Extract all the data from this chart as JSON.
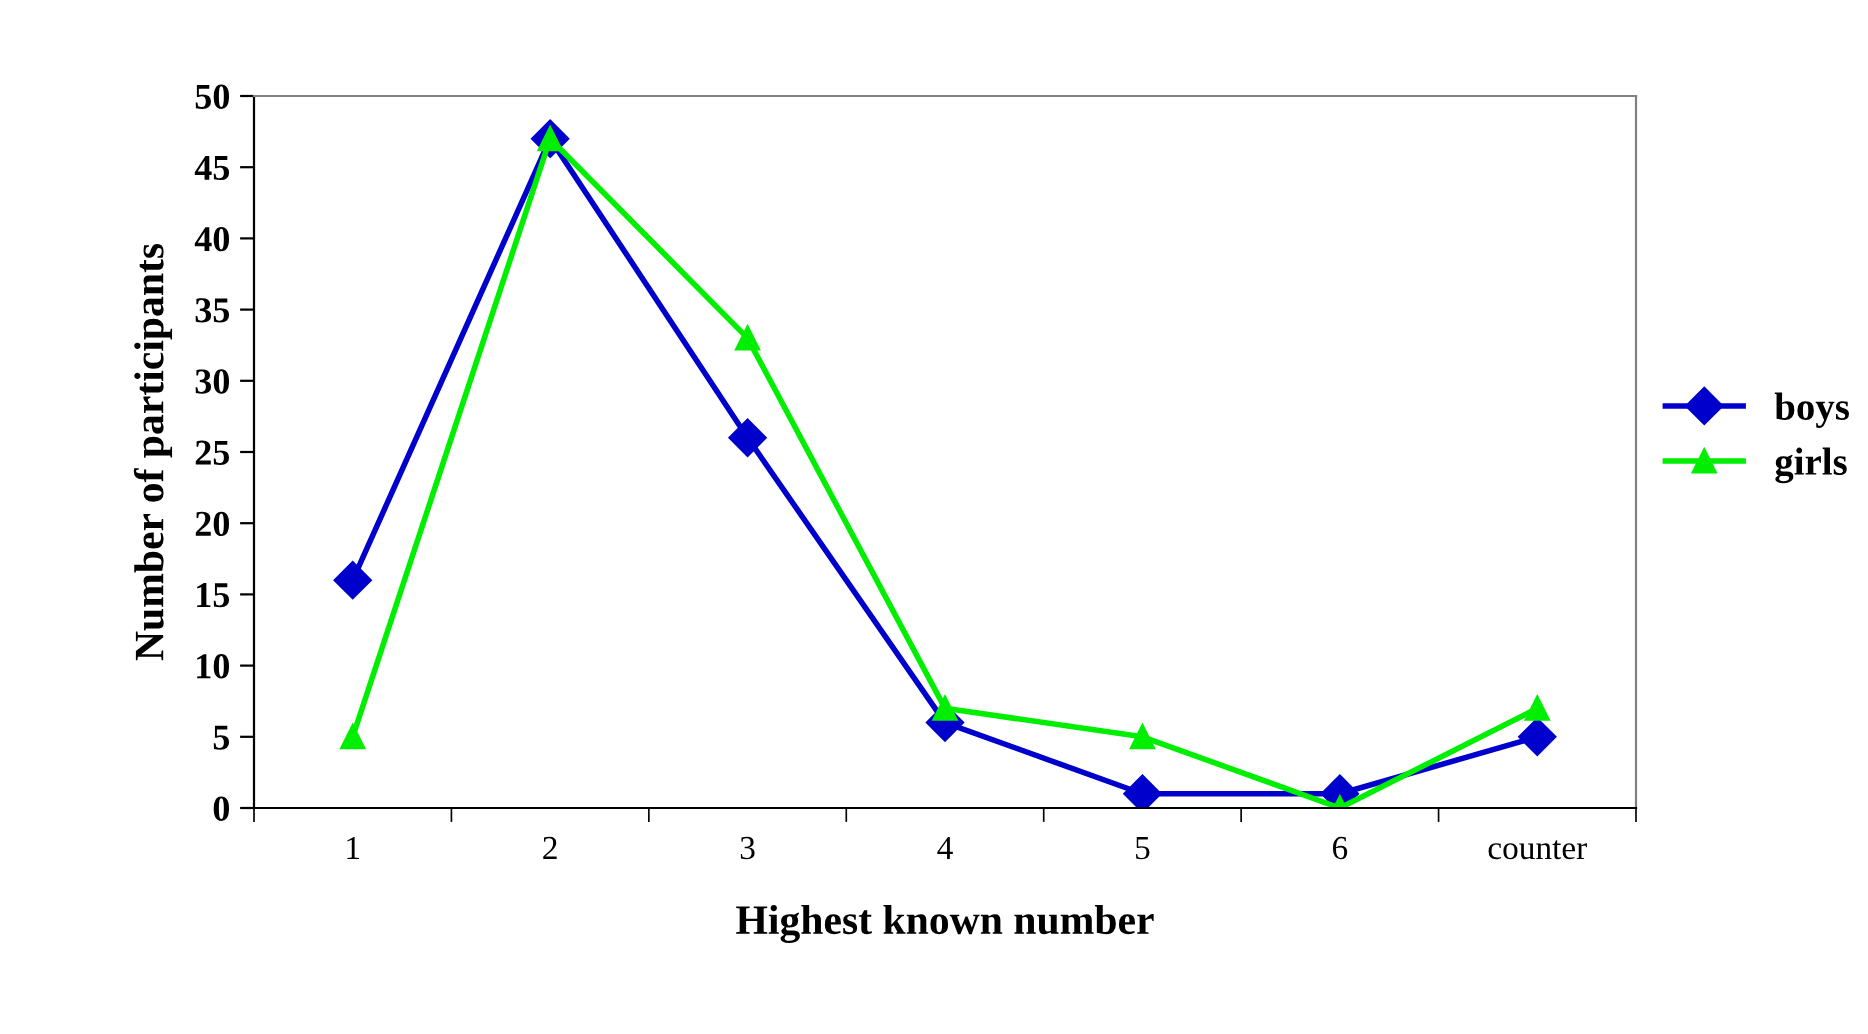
{
  "chart_data": {
    "type": "line",
    "xlabel": "Highest known number",
    "ylabel": "Number of participants",
    "categories": [
      "1",
      "2",
      "3",
      "4",
      "5",
      "6",
      "counter"
    ],
    "series": [
      {
        "name": "boys",
        "color": "#0000cc",
        "marker": "diamond",
        "values": [
          16,
          47,
          26,
          6,
          1,
          1,
          5
        ]
      },
      {
        "name": "girls",
        "color": "#00ee00",
        "marker": "triangle",
        "values": [
          5,
          47,
          33,
          7,
          5,
          0,
          7
        ]
      }
    ],
    "ylim": [
      0,
      50
    ],
    "yticks": [
      0,
      5,
      10,
      15,
      20,
      25,
      30,
      35,
      40,
      45,
      50
    ],
    "grid": false,
    "legend": "right"
  }
}
